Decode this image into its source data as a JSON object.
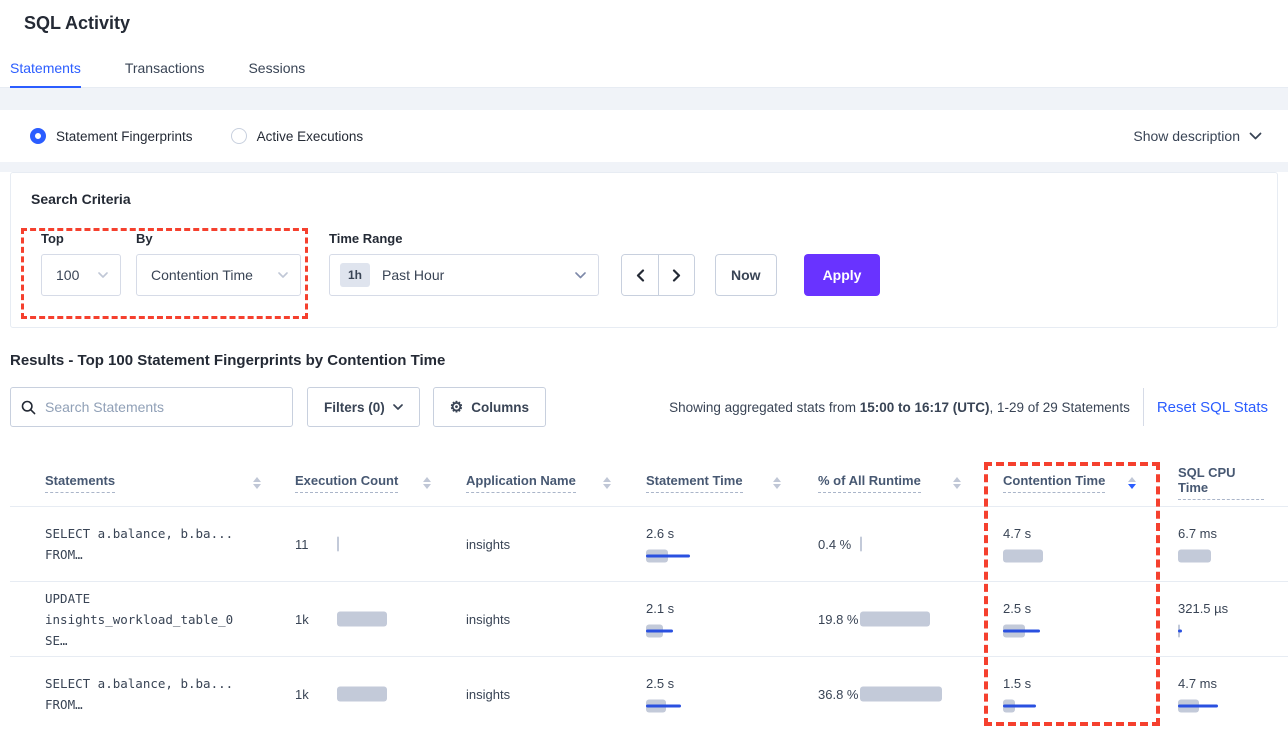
{
  "page": {
    "title": "SQL Activity"
  },
  "tabs": [
    {
      "label": "Statements",
      "active": true
    },
    {
      "label": "Transactions",
      "active": false
    },
    {
      "label": "Sessions",
      "active": false
    }
  ],
  "view_toggle": {
    "options": [
      {
        "label": "Statement Fingerprints",
        "selected": true
      },
      {
        "label": "Active Executions",
        "selected": false
      }
    ],
    "show_description": "Show description"
  },
  "search_criteria": {
    "heading": "Search Criteria",
    "top_label": "Top",
    "top_value": "100",
    "by_label": "By",
    "by_value": "Contention Time",
    "time_range_label": "Time Range",
    "time_range_badge": "1h",
    "time_range_value": "Past Hour",
    "now_label": "Now",
    "apply_label": "Apply"
  },
  "results": {
    "heading": "Results - Top 100 Statement Fingerprints by Contention Time",
    "search_placeholder": "Search Statements",
    "filters_label": "Filters (0)",
    "columns_label": "Columns",
    "stats_prefix": "Showing aggregated stats from ",
    "stats_bold": "15:00 to 16:17 (UTC)",
    "stats_suffix": ", 1-29 of 29 Statements",
    "reset_label": "Reset SQL Stats"
  },
  "table": {
    "columns": [
      {
        "label": "Statements",
        "sort": "none"
      },
      {
        "label": "Execution Count",
        "sort": "none"
      },
      {
        "label": "Application Name",
        "sort": "none"
      },
      {
        "label": "Statement Time",
        "sort": "none"
      },
      {
        "label": "% of All Runtime",
        "sort": "none"
      },
      {
        "label": "Contention Time",
        "sort": "desc"
      },
      {
        "label": "SQL CPU Time",
        "sort": "none"
      }
    ],
    "rows": [
      {
        "statement_line1": "SELECT a.balance, b.ba...",
        "statement_line2": "FROM…",
        "execution_count": "11",
        "execution_bar": 2,
        "application_name": "insights",
        "statement_time": "2.6 s",
        "statement_time_gray": 22,
        "statement_time_blue": 44,
        "runtime_pct": "0.4 %",
        "runtime_bar": 2,
        "contention_time": "4.7 s",
        "contention_gray": 40,
        "contention_blue": 0,
        "sql_cpu_time": "6.7 ms",
        "cpu_gray": 33,
        "cpu_blue": 0
      },
      {
        "statement_line1": "UPDATE",
        "statement_line2": "insights_workload_table_0 SE…",
        "execution_count": "1k",
        "execution_bar": 50,
        "application_name": "insights",
        "statement_time": "2.1 s",
        "statement_time_gray": 17,
        "statement_time_blue": 27,
        "runtime_pct": "19.8 %",
        "runtime_bar": 70,
        "contention_time": "2.5 s",
        "contention_gray": 22,
        "contention_blue": 37,
        "sql_cpu_time": "321.5 µs",
        "cpu_gray": 2,
        "cpu_blue": 4
      },
      {
        "statement_line1": "SELECT a.balance, b.ba...",
        "statement_line2": "FROM…",
        "execution_count": "1k",
        "execution_bar": 50,
        "application_name": "insights",
        "statement_time": "2.5 s",
        "statement_time_gray": 20,
        "statement_time_blue": 35,
        "runtime_pct": "36.8 %",
        "runtime_bar": 82,
        "contention_time": "1.5 s",
        "contention_gray": 12,
        "contention_blue": 33,
        "sql_cpu_time": "4.7 ms",
        "cpu_gray": 21,
        "cpu_blue": 40
      }
    ]
  },
  "colors": {
    "accent_blue": "#2b5dff",
    "bar_blue": "#2a50e0",
    "bar_gray": "#c3cad9",
    "apply_purple": "#6933ff",
    "annotation_red": "#f5402e",
    "link_blue": "#2b5dff"
  }
}
